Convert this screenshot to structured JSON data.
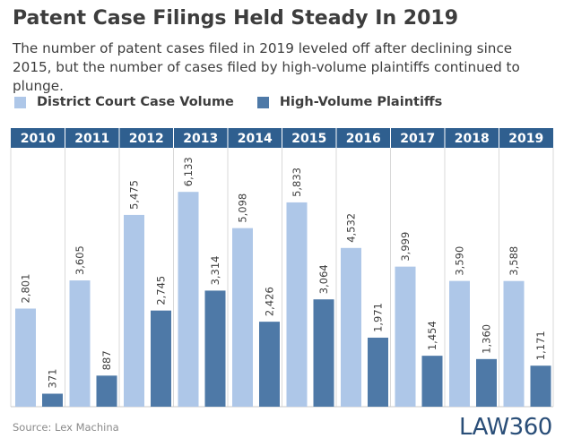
{
  "title": "Patent Case Filings Held Steady In 2019",
  "subtitle": "The number of patent cases filed in 2019 leveled off after declining since 2015, but the number of cases filed by high-volume plaintiffs continued to plunge.",
  "source": "Source: Lex Machina",
  "logo": {
    "word": "LAW",
    "number": "360"
  },
  "colors": {
    "light": "#aec7e8",
    "dark": "#4e79a7",
    "header": "#2f5f8f",
    "text": "#3d3d3d",
    "logo_accent": "#e2231a"
  },
  "chart_data": {
    "type": "bar",
    "categories": [
      "2010",
      "2011",
      "2012",
      "2013",
      "2014",
      "2015",
      "2016",
      "2017",
      "2018",
      "2019"
    ],
    "series": [
      {
        "name": "District Court Case Volume",
        "values": [
          2801,
          3605,
          5475,
          6133,
          5098,
          5833,
          4532,
          3999,
          3590,
          3588
        ],
        "labels": [
          "2,801",
          "3,605",
          "5,475",
          "6,133",
          "5,098",
          "5,833",
          "4,532",
          "3,999",
          "3,590",
          "3,588"
        ]
      },
      {
        "name": "High-Volume Plaintiffs",
        "values": [
          371,
          887,
          2745,
          3314,
          2426,
          3064,
          1971,
          1454,
          1360,
          1171
        ],
        "labels": [
          "371",
          "887",
          "2,745",
          "3,314",
          "2,426",
          "3,064",
          "1,971",
          "1,454",
          "1,360",
          "1,171"
        ]
      }
    ],
    "title": "",
    "xlabel": "",
    "ylabel": "",
    "grid": false,
    "legend": "top-left"
  }
}
